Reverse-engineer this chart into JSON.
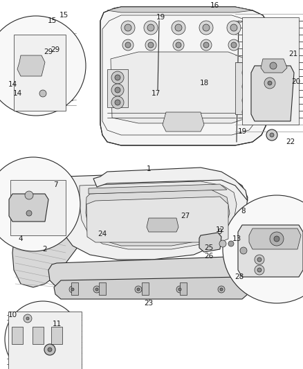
{
  "bg_color": "#ffffff",
  "line_color": "#2a2a2a",
  "fig_width": 4.38,
  "fig_height": 5.33,
  "dpi": 100,
  "lw_thin": 0.5,
  "lw_med": 0.8,
  "lw_thick": 1.1,
  "label_fs": 7.5,
  "gray_light": "#c8c8c8",
  "gray_med": "#a0a0a0",
  "gray_dark": "#707070",
  "hatch_color": "#888888"
}
